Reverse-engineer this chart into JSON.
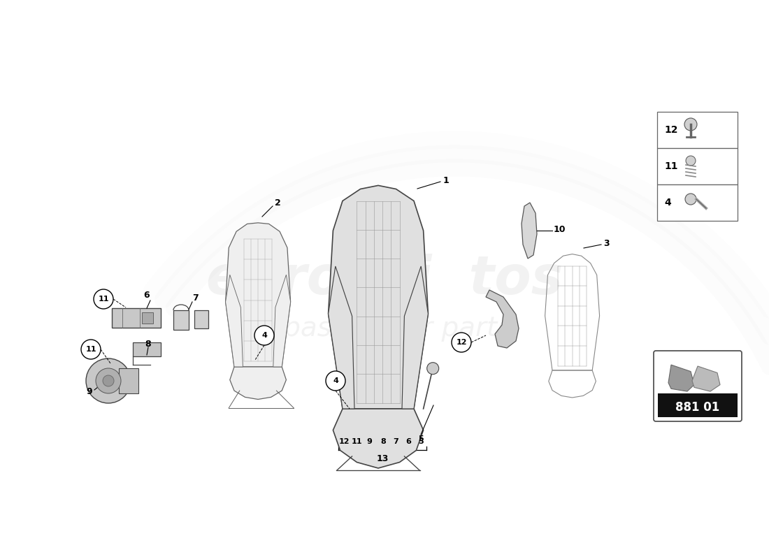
{
  "background_color": "#ffffff",
  "part_number": "881 01",
  "watermark_color": "#d0d0d0",
  "line_color": "#555555",
  "legend_items": [
    {
      "num": "12",
      "type": "clip"
    },
    {
      "num": "11",
      "type": "screw"
    },
    {
      "num": "4",
      "type": "bolt"
    }
  ]
}
